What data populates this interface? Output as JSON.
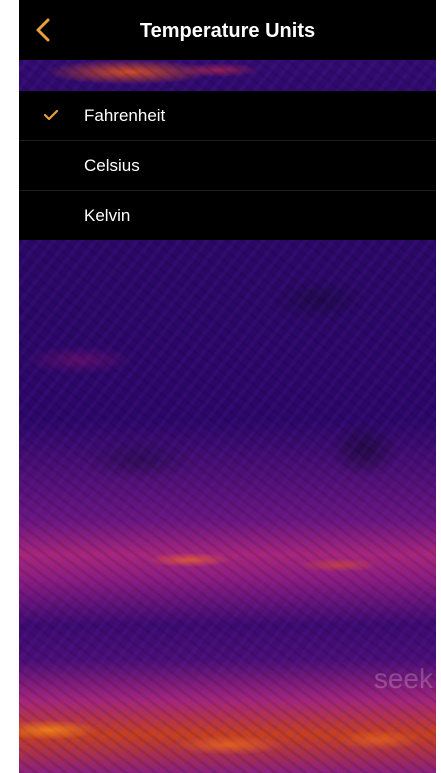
{
  "header": {
    "title": "Temperature Units",
    "back_icon": "chevron-left-icon"
  },
  "units": {
    "options": [
      {
        "label": "Fahrenheit",
        "selected": true
      },
      {
        "label": "Celsius",
        "selected": false
      },
      {
        "label": "Kelvin",
        "selected": false
      }
    ],
    "check_icon": "checkmark-icon"
  },
  "watermark": {
    "text": "seek"
  },
  "colors": {
    "accent": "#e8a23a",
    "header_bg": "#000000",
    "text": "#ffffff",
    "thermal_base": "#2a0866"
  }
}
